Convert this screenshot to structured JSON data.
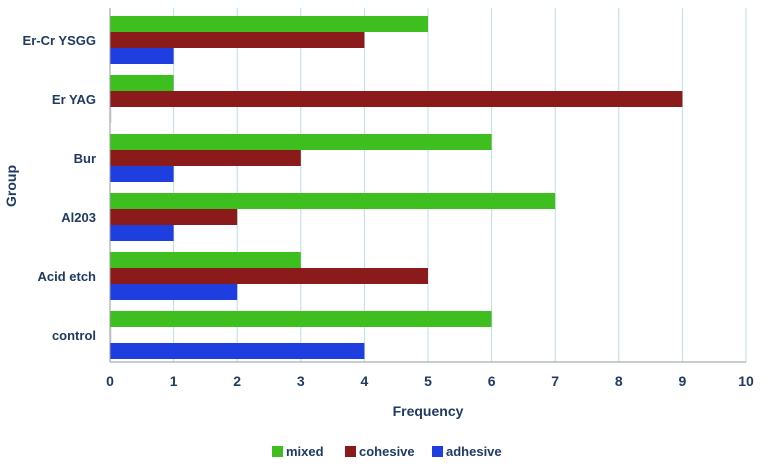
{
  "chart_data": {
    "type": "bar",
    "orientation": "horizontal",
    "title": "",
    "xlabel": "Frequency",
    "ylabel": "Group",
    "categories": [
      "Er-Cr YSGG",
      "Er YAG",
      "Bur",
      "Al203",
      "Acid etch",
      "control"
    ],
    "series": [
      {
        "name": "mixed",
        "color": "#3fbf1f",
        "values": [
          5,
          1,
          6,
          7,
          3,
          6
        ]
      },
      {
        "name": "cohesive",
        "color": "#8b1a1a",
        "values": [
          4,
          9,
          3,
          2,
          5,
          0
        ]
      },
      {
        "name": "adhesive",
        "color": "#1f3ee0",
        "values": [
          1,
          0,
          1,
          1,
          2,
          4
        ]
      }
    ],
    "xlim": [
      0,
      10
    ],
    "xticks": [
      0,
      1,
      2,
      3,
      4,
      5,
      6,
      7,
      8,
      9,
      10
    ],
    "grid": true,
    "legend_position": "bottom-center"
  }
}
